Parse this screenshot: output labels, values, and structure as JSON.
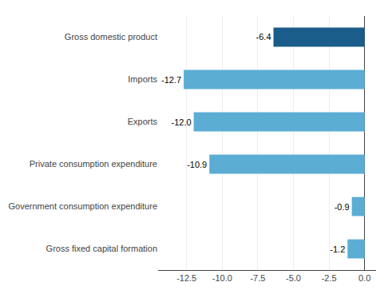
{
  "chart_data": {
    "type": "bar",
    "orientation": "horizontal",
    "categories": [
      "Gross fixed capital formation",
      "Government consumption expenditure",
      "Private consumption expenditure",
      "Exports",
      "Imports",
      "Gross domestic product"
    ],
    "values": [
      -1.2,
      -0.9,
      -10.9,
      -12.0,
      -12.7,
      -6.4
    ],
    "value_labels": [
      "-1.2",
      "-0.9",
      "-10.9",
      "-12.0",
      "-12.7",
      "-6.4"
    ],
    "data_labels": true,
    "colors": [
      "#5badd4",
      "#5badd4",
      "#5badd4",
      "#5badd4",
      "#5badd4",
      "#1a5c8a"
    ],
    "xlim": [
      -14.5,
      0.8
    ],
    "xticks": [
      -12.5,
      {
        "value": -10.0,
        "label": "-10.0"
      },
      -7.5,
      {
        "value": -5.0,
        "label": "-5.0"
      },
      -2.5,
      {
        "value": 0.0,
        "label": "0.0"
      }
    ],
    "grid": true
  }
}
